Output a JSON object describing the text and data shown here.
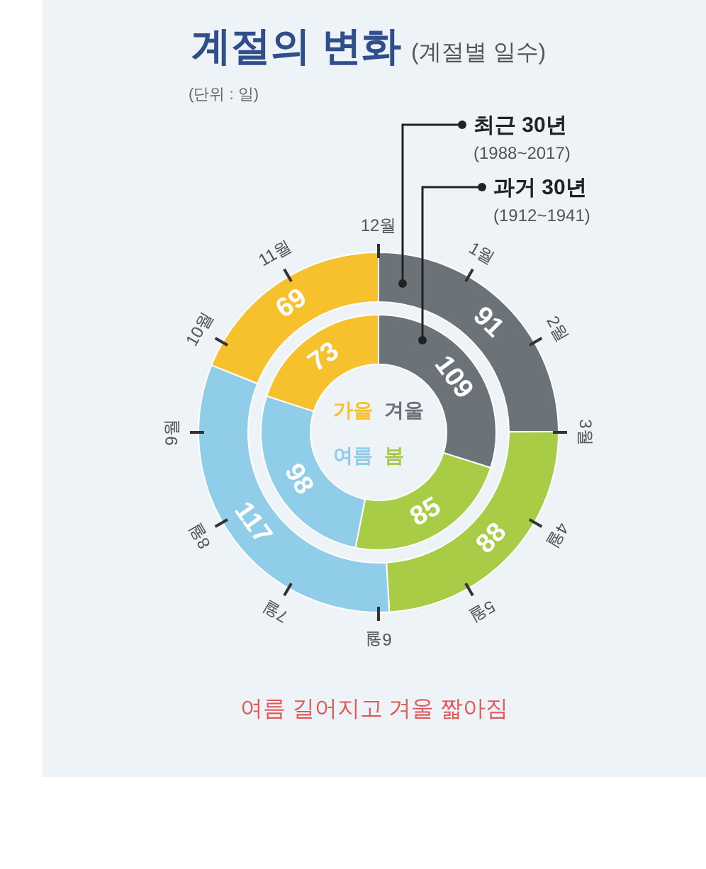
{
  "chart_data": {
    "type": "donut",
    "title": "계절의 변화",
    "subtitle": "(계절별 일수)",
    "categories": [
      "겨울",
      "봄",
      "여름",
      "가을"
    ],
    "colors": [
      "#6b7379",
      "#a9cc46",
      "#8fcde9",
      "#f7c12e"
    ],
    "series": [
      {
        "name": "최근 30년",
        "values": [
          91,
          88,
          117,
          69
        ]
      },
      {
        "name": "과거 30년",
        "values": [
          109,
          85,
          98,
          73
        ]
      }
    ],
    "data_labels": true,
    "annotations": [
      "(단위 : 일)",
      "(1988~2017)",
      "(1912~1941)",
      "여름 길어지고 겨울 짧아짐",
      "1월",
      "2월",
      "3월",
      "4월",
      "5월",
      "6월",
      "7월",
      "8월",
      "9월",
      "10월",
      "11월",
      "12월"
    ]
  }
}
